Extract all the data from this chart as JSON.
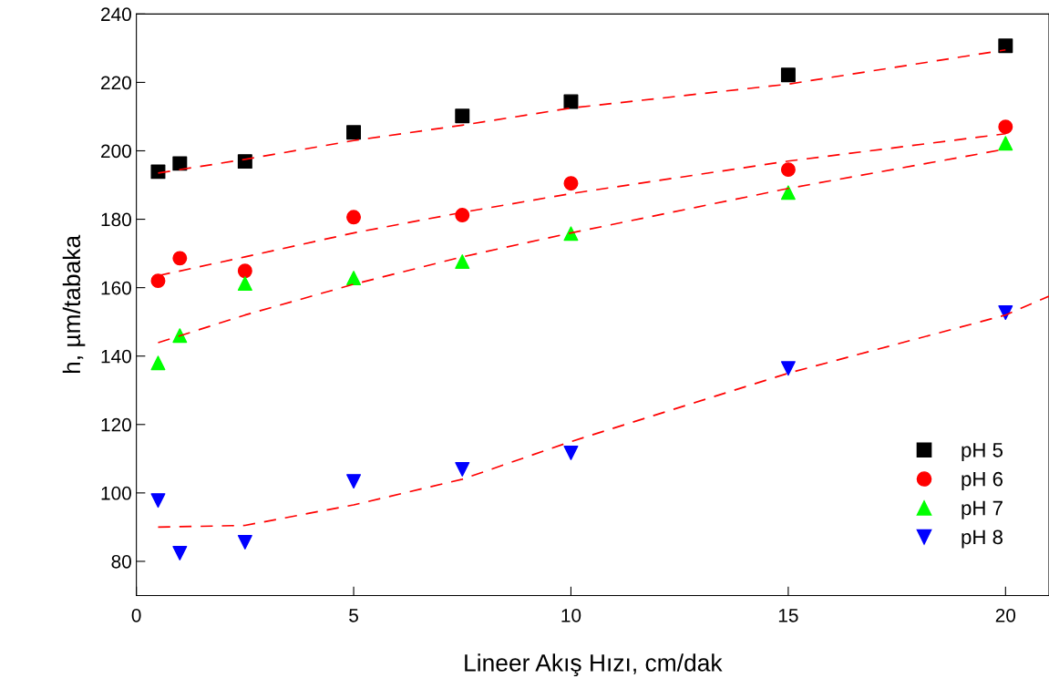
{
  "chart_data": {
    "type": "scatter",
    "xlabel": "Lineer Akış Hızı, cm/dak",
    "ylabel": "h, µm/tabaka",
    "xlim": [
      0,
      21
    ],
    "xticks": [
      0,
      5,
      10,
      15,
      20
    ],
    "ylim": [
      70,
      240
    ],
    "yticks": [
      80,
      100,
      120,
      140,
      160,
      180,
      200,
      220,
      240
    ],
    "grid": false,
    "legend": "bottom right",
    "series": [
      {
        "name": "pH 5",
        "color": "#000000",
        "marker": "square",
        "x": [
          0.5,
          1,
          2.5,
          5,
          7.5,
          10,
          15,
          20
        ],
        "values": [
          193.9,
          196.3,
          196.9,
          205.4,
          210.2,
          214.4,
          222.2,
          230.7
        ]
      },
      {
        "name": "pH 6",
        "color": "#ff0000",
        "marker": "circle",
        "x": [
          0.5,
          1,
          2.5,
          5,
          7.5,
          10,
          15,
          20
        ],
        "values": [
          162,
          168.6,
          164.9,
          180.6,
          181.2,
          190.5,
          194.5,
          207
        ]
      },
      {
        "name": "pH 7",
        "color": "#00ff00",
        "marker": "triangle",
        "x": [
          0.5,
          1,
          2.5,
          5,
          7.5,
          10,
          15,
          20
        ],
        "values": [
          138,
          146,
          161.2,
          162.8,
          167.6,
          175.8,
          187.8,
          202.2
        ]
      },
      {
        "name": "pH 8",
        "color": "#0000ff",
        "marker": "triangle-down",
        "x": [
          0.5,
          1,
          2.5,
          5,
          7.5,
          10,
          15,
          20
        ],
        "values": [
          97.8,
          82.4,
          85.6,
          103.4,
          106.9,
          111.7,
          136.4,
          152.7
        ]
      },
      {
        "type": "line",
        "color": "#ff0000",
        "line_style": "dashed",
        "marker": "none",
        "x": [
          0.5,
          2.5,
          5,
          7.5,
          10,
          15,
          20
        ],
        "values": [
          193.5,
          197.5,
          203,
          207.5,
          212.5,
          219.5,
          229.5
        ]
      },
      {
        "type": "line",
        "color": "#ff0000",
        "line_style": "dashed",
        "marker": "none",
        "x": [
          0.5,
          2.5,
          5,
          7.5,
          10,
          15,
          20
        ],
        "values": [
          163.5,
          169,
          176,
          182,
          187.5,
          197,
          205
        ]
      },
      {
        "type": "line",
        "color": "#ff0000",
        "line_style": "dashed",
        "marker": "none",
        "x": [
          0.5,
          2.5,
          5,
          7.5,
          10,
          15,
          20
        ],
        "values": [
          143.9,
          152,
          161,
          169,
          176,
          189,
          200.5
        ]
      },
      {
        "type": "line",
        "color": "#ff0000",
        "line_style": "dashed",
        "marker": "none",
        "x": [
          0.5,
          2.5,
          5,
          7.5,
          10,
          15,
          20,
          21
        ],
        "values": [
          90,
          90.5,
          96.5,
          104,
          115,
          135,
          152,
          157.5
        ]
      }
    ]
  }
}
